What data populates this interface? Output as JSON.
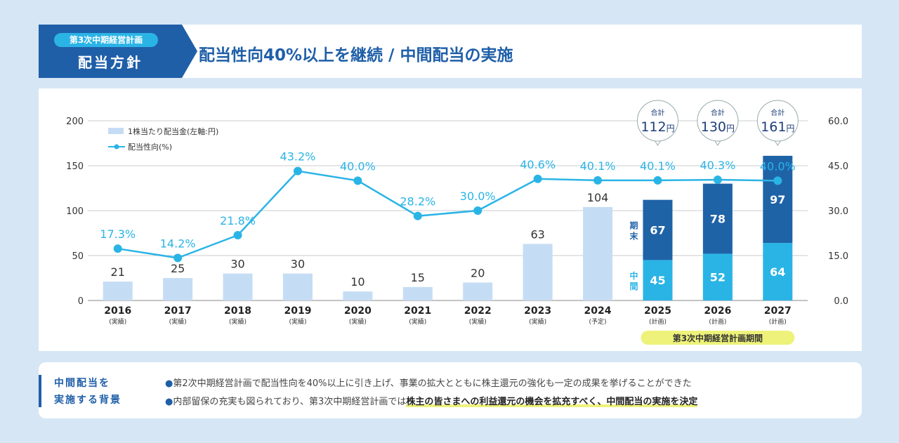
{
  "header": {
    "plan_pill": "第3次中期経営計画",
    "policy_label": "配当方針",
    "title": "配当性向40%以上を継続 / 中間配当の実施"
  },
  "chart_data": {
    "type": "bar",
    "categories": [
      "2016",
      "2017",
      "2018",
      "2019",
      "2020",
      "2021",
      "2022",
      "2023",
      "2024",
      "2025",
      "2026",
      "2027"
    ],
    "category_notes": [
      "(実績)",
      "(実績)",
      "(実績)",
      "(実績)",
      "(実績)",
      "(実績)",
      "(実績)",
      "(実績)",
      "(予定)",
      "(計画)",
      "(計画)",
      "(計画)"
    ],
    "series": [
      {
        "name": "1株当たり配当金(左軸:円)",
        "type": "bar",
        "values": [
          21,
          25,
          30,
          30,
          10,
          15,
          20,
          63,
          104,
          null,
          null,
          null
        ]
      },
      {
        "name": "中間",
        "type": "stacked-bar",
        "values": [
          null,
          null,
          null,
          null,
          null,
          null,
          null,
          null,
          null,
          45,
          52,
          64
        ]
      },
      {
        "name": "期末",
        "type": "stacked-bar",
        "values": [
          null,
          null,
          null,
          null,
          null,
          null,
          null,
          null,
          null,
          67,
          78,
          97
        ]
      },
      {
        "name": "配当性向(%)",
        "type": "line",
        "axis": "right",
        "values": [
          17.3,
          14.2,
          21.8,
          43.2,
          40.0,
          28.2,
          30.0,
          40.6,
          40.1,
          40.1,
          40.3,
          40.0
        ],
        "labels": [
          "17.3%",
          "14.2%",
          "21.8%",
          "43.2%",
          "40.0%",
          "28.2%",
          "30.0%",
          "40.6%",
          "40.1%",
          "40.1%",
          "40.3%",
          "40.0%"
        ]
      }
    ],
    "totals": [
      {
        "category": "2025",
        "prefix": "合計",
        "value": "112",
        "unit": "円"
      },
      {
        "category": "2026",
        "prefix": "合計",
        "value": "130",
        "unit": "円"
      },
      {
        "category": "2027",
        "prefix": "合計",
        "value": "161",
        "unit": "円"
      }
    ],
    "stack_labels": {
      "interim": "中間",
      "final": "期末"
    },
    "y_left": {
      "ylim": [
        0,
        200
      ],
      "ticks": [
        "0",
        "50",
        "100",
        "150",
        "200"
      ]
    },
    "y_right": {
      "ylim": [
        0,
        60
      ],
      "ticks": [
        "0.0",
        "15.0",
        "30.0",
        "45.0",
        "60.0"
      ]
    },
    "legend": {
      "placement": "top-left",
      "bar_label": "1株当たり配当金(左軸:円)",
      "line_label": "配当性向(%)"
    },
    "period_label": "第3次中期経営計画期間",
    "grid": true,
    "colors": {
      "bar_past": "#c5ddf4",
      "bar_interim": "#2ab4e6",
      "bar_final": "#1f63a7",
      "line": "#2ab4e6",
      "period": "#eef27a",
      "grid": "#cccccc"
    }
  },
  "footer": {
    "label_line1": "中間配当を",
    "label_line2": "実施する背景",
    "point1": "第2次中期経営計画で配当性向を40%以上に引き上げ、事業の拡大とともに株主還元の強化も一定の成果を挙げることができた",
    "point2_prefix": "内部留保の充実も図られており、第3次中期経営計画では",
    "point2_highlight": "株主の皆さまへの利益還元の機会を拡充すべく、中間配当の実施を決定",
    "bullet": "●"
  }
}
